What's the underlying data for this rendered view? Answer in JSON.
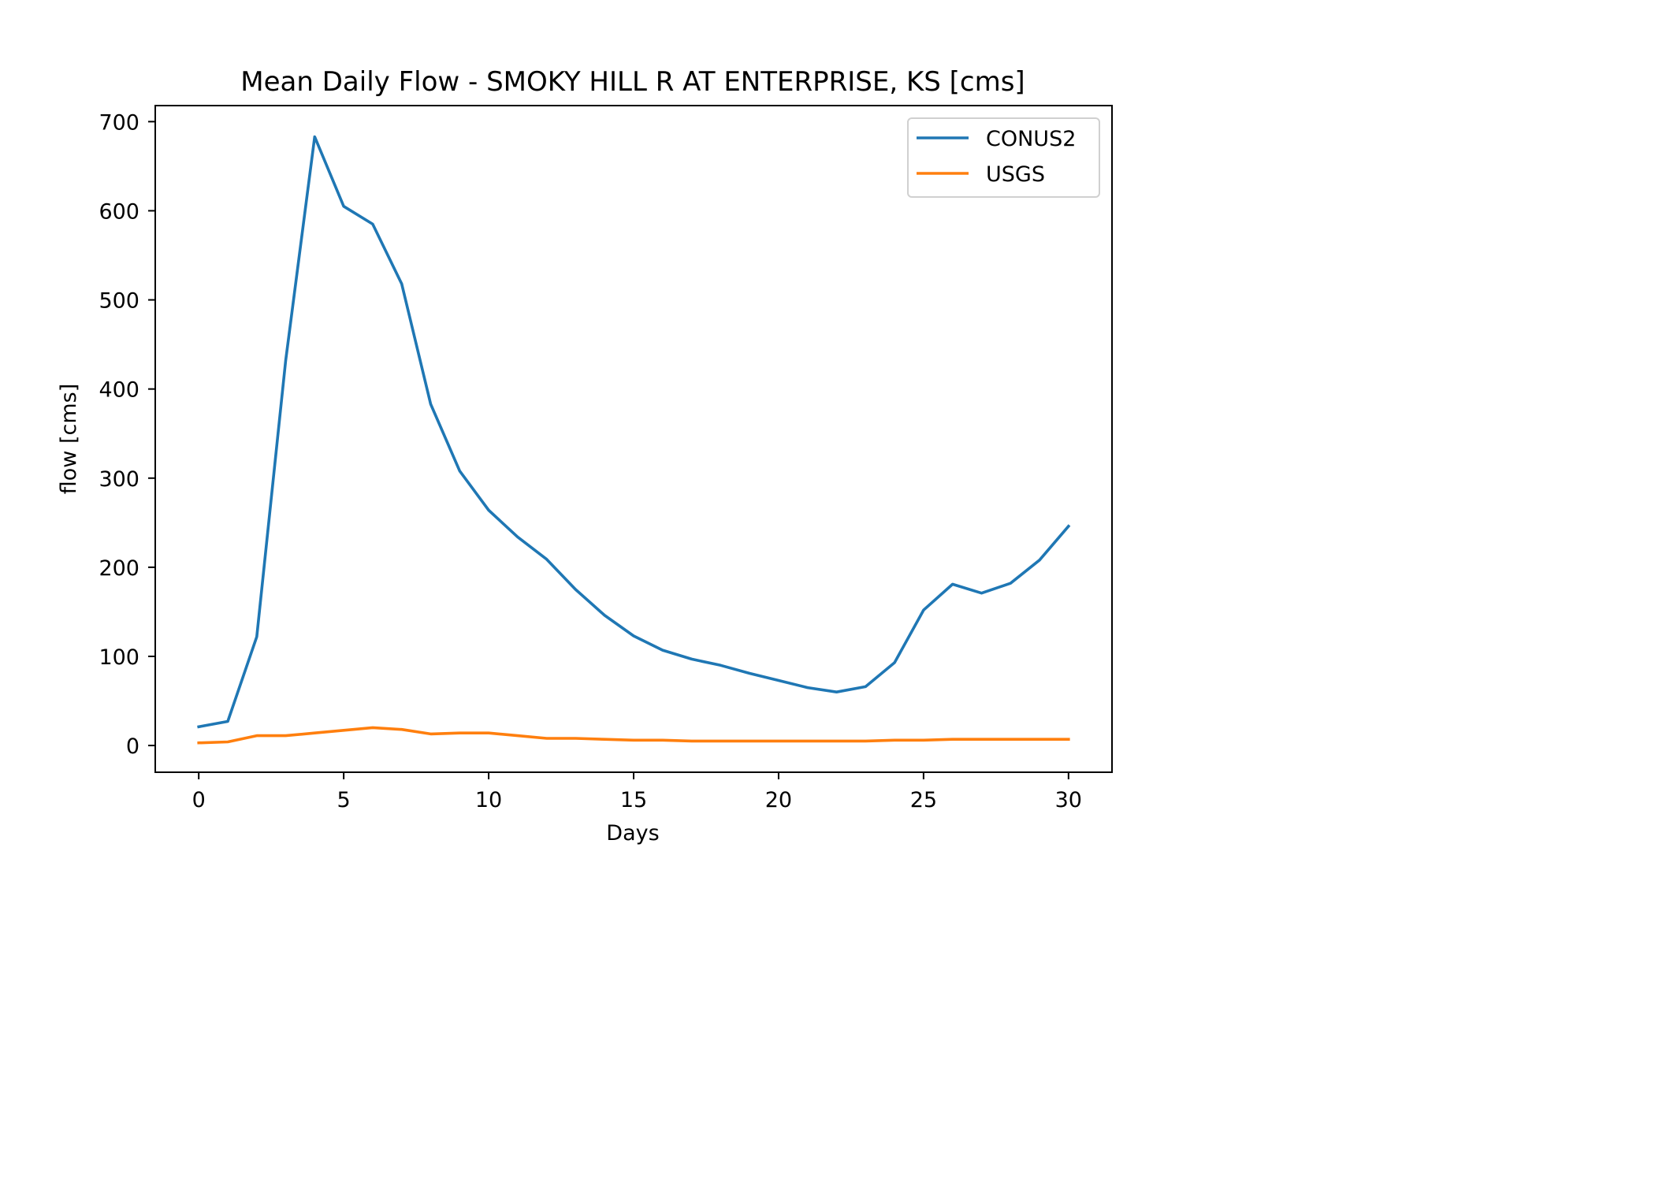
{
  "chart_data": {
    "type": "line",
    "title": "Mean Daily Flow - SMOKY HILL R AT ENTERPRISE, KS [cms]",
    "xlabel": "Days",
    "ylabel": "flow [cms]",
    "xlim": [
      -1.5,
      31.5
    ],
    "ylim": [
      -30,
      718
    ],
    "xticks": [
      0,
      5,
      10,
      15,
      20,
      25,
      30
    ],
    "yticks": [
      0,
      100,
      200,
      300,
      400,
      500,
      600,
      700
    ],
    "grid": false,
    "legend_position": "upper right",
    "x": [
      0,
      1,
      2,
      3,
      4,
      5,
      6,
      7,
      8,
      9,
      10,
      11,
      12,
      13,
      14,
      15,
      16,
      17,
      18,
      19,
      20,
      21,
      22,
      23,
      24,
      25,
      26,
      27,
      28,
      29,
      30
    ],
    "series": [
      {
        "name": "CONUS2",
        "color": "#1f77b4",
        "values": [
          21,
          27,
          122,
          432,
          683,
          605,
          585,
          518,
          383,
          308,
          264,
          234,
          209,
          175,
          146,
          123,
          107,
          97,
          90,
          81,
          73,
          65,
          60,
          66,
          93,
          152,
          181,
          171,
          182,
          208,
          246
        ]
      },
      {
        "name": "USGS",
        "color": "#ff7f0e",
        "values": [
          3,
          4,
          11,
          11,
          14,
          17,
          20,
          18,
          13,
          14,
          14,
          11,
          8,
          8,
          7,
          6,
          6,
          5,
          5,
          5,
          5,
          5,
          5,
          5,
          6,
          6,
          7,
          7,
          7,
          7,
          7
        ]
      }
    ]
  }
}
